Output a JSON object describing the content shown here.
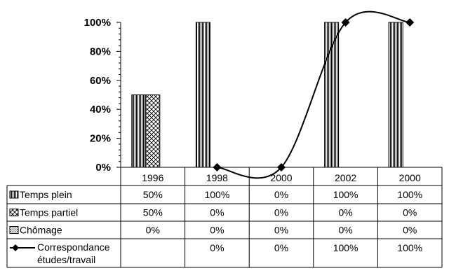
{
  "chart_data": {
    "type": "bar",
    "categories": [
      "1996",
      "1998",
      "2000",
      "2002",
      "2000"
    ],
    "series": [
      {
        "name": "Temps plein",
        "kind": "bar",
        "values": [
          50,
          100,
          0,
          100,
          100
        ],
        "cells": [
          "50%",
          "100%",
          "0%",
          "100%",
          "100%"
        ]
      },
      {
        "name": "Temps partiel",
        "kind": "bar",
        "values": [
          50,
          0,
          0,
          0,
          0
        ],
        "cells": [
          "50%",
          "0%",
          "0%",
          "0%",
          "0%"
        ]
      },
      {
        "name": "Chômage",
        "kind": "bar",
        "values": [
          0,
          0,
          0,
          0,
          0
        ],
        "cells": [
          "0%",
          "0%",
          "0%",
          "0%",
          "0%"
        ]
      },
      {
        "name": "Correspondance études/travail",
        "name_lines": [
          "Correspondance",
          "études/travail"
        ],
        "kind": "line",
        "values": [
          null,
          0,
          0,
          100,
          100
        ],
        "cells": [
          "",
          "0%",
          "0%",
          "100%",
          "100%"
        ]
      }
    ],
    "ylim": [
      0,
      100
    ],
    "yticks": [
      "0%",
      "20%",
      "40%",
      "60%",
      "80%",
      "100%"
    ],
    "legend": "data-table-below"
  }
}
